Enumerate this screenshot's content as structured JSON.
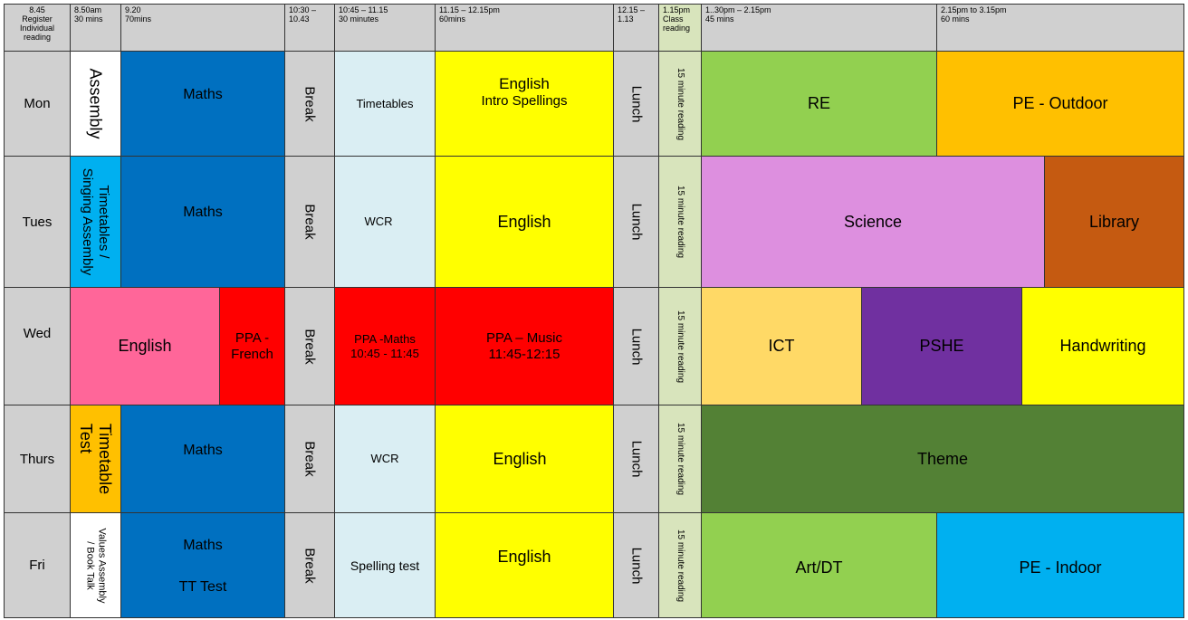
{
  "header": {
    "register": [
      "8.45",
      "Register",
      "Individual",
      "reading"
    ],
    "slot1": [
      "8.50am",
      "30 mins"
    ],
    "slot2": [
      "9.20",
      "70mins"
    ],
    "slot3": [
      "10:30 –",
      "10.43"
    ],
    "slot4": [
      "10:45 – 11.15",
      "30 minutes"
    ],
    "slot5": [
      "11.15 – 12.15pm",
      "60mins"
    ],
    "slot6": [
      "12.15 –",
      "1.13"
    ],
    "slot7": [
      "1.15pm",
      "Class",
      "reading"
    ],
    "slot8": [
      "1..30pm – 2.15pm",
      "45  mins"
    ],
    "slot9": [
      "2.15pm to 3.15pm",
      "60 mins"
    ]
  },
  "days": {
    "mon": "Mon",
    "tue": "Tues",
    "wed": "Wed",
    "thu": "Thurs",
    "fri": "Fri"
  },
  "common": {
    "break": "Break",
    "lunch": "Lunch",
    "reading": "15 minute reading"
  },
  "mon": {
    "assembly": "Assembly",
    "maths": "Maths",
    "timetables": "Timetables",
    "english1": "English",
    "english2": "Intro Spellings",
    "re": "RE",
    "pe": "PE - Outdoor"
  },
  "tue": {
    "singing1": "Timetables /",
    "singing2": "Singing Assembly",
    "maths": "Maths",
    "wcr": "WCR",
    "english": "English",
    "science": "Science",
    "library": "Library"
  },
  "wed": {
    "english": "English",
    "ppa_french1": "PPA -",
    "ppa_french2": "French",
    "ppa_maths1": "PPA -Maths",
    "ppa_maths2": "10:45 - 11:45",
    "ppa_music1": "PPA – Music",
    "ppa_music2": "11:45-12:15",
    "ict": "ICT",
    "pshe": "PSHE",
    "handwriting": "Handwriting"
  },
  "thu": {
    "tt1": "Timetable",
    "tt2": "Test",
    "maths": "Maths",
    "wcr": "WCR",
    "english": "English",
    "theme": "Theme"
  },
  "fri": {
    "values1": "Values Assembly",
    "values2": "/ Book Talk",
    "maths1": "Maths",
    "maths2": "TT Test",
    "spelling": "Spelling test",
    "english": "English",
    "art": "Art/DT",
    "pe": "PE - Indoor"
  },
  "colors": {
    "gray": "#d0d0d0",
    "maths_blue": "#0070c0",
    "light_blue": "#daeef3",
    "yellow": "#ffff00",
    "green": "#92d050",
    "orange": "#ffc000",
    "cyan": "#00b0f0",
    "lilac": "#dd8fdf",
    "brown": "#c55a11",
    "pink": "#ff6699",
    "red": "#ff0000",
    "light_orange": "#ffd966",
    "purple": "#7030a0",
    "dark_green": "#538135"
  }
}
